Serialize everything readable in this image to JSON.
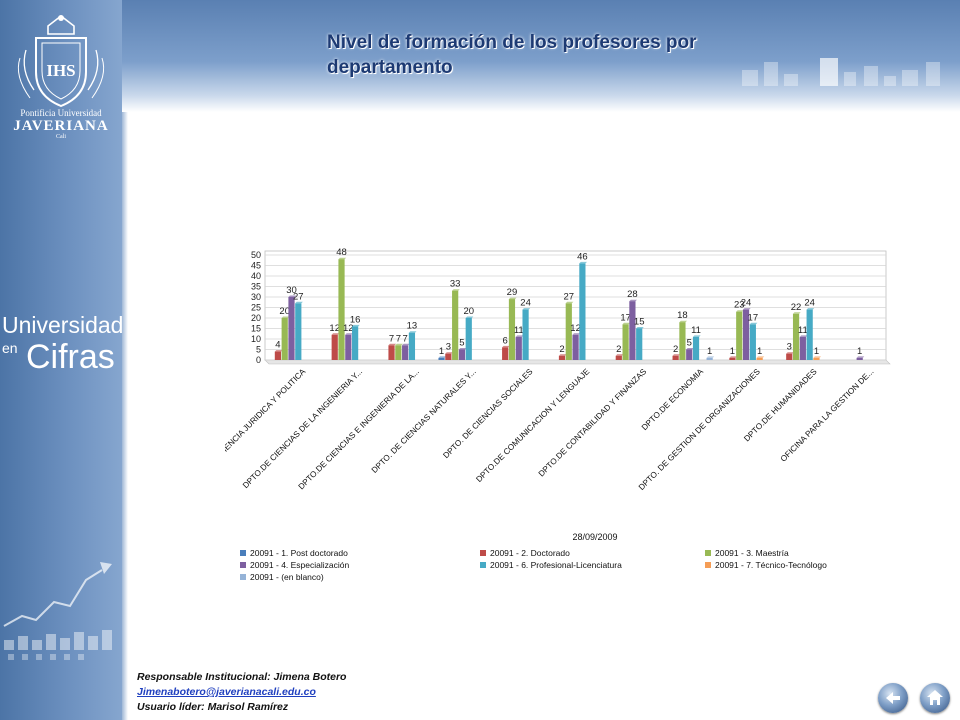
{
  "page": {
    "title": "Nivel de formación  de los profesores por departamento"
  },
  "branding": {
    "logo_text": "Pontificia Universidad JAVERIANA Cali",
    "university_line1": "Pontificia Universidad",
    "university_line2": "JAVERIANA",
    "university_line3": "Cali",
    "crest_letters": "IHS",
    "publication_line1": "Universidad",
    "publication_line2": "en",
    "publication_line3": "Cifras"
  },
  "footer": {
    "responsible": "Responsable Institucional: Jimena Botero",
    "email": "Jimenabotero@javerianacali.edu.co",
    "leader": "Usuario líder: Marisol Ramírez"
  },
  "nav": {
    "back_icon": "back-arrow-icon",
    "home_icon": "home-icon"
  },
  "colors": {
    "title": "#1d3a73",
    "sidebar": "#5b80b2"
  },
  "chart_data": {
    "type": "bar",
    "date_label": "28/09/2009",
    "ylim": [
      0,
      50
    ],
    "yticks": [
      0,
      5,
      10,
      15,
      20,
      25,
      30,
      35,
      40,
      45,
      50
    ],
    "grid": true,
    "legend_position": "bottom",
    "categories": [
      "DPTO.DE CIENCIA JURIDICA Y POLITICA",
      "DPTO.DE CIENCIAS DE LA INGENIERIA Y...",
      "DPTO.DE CIENCIAS E INGENIERIA DE LA...",
      "DPTO. DE CIENCIAS NATURALES Y...",
      "DPTO. DE CIENCIAS SOCIALES",
      "DPTO.DE COMUNICACION Y LENGUAJE",
      "DPTO.DE CONTABILIDAD Y FINANZAS",
      "DPTO.DE ECONOMIA",
      "DPTO. DE GESTION DE ORGANIZACIONES",
      "DPTO.DE HUMANIDADES",
      "OFICINA PARA LA GESTION DE..."
    ],
    "series": [
      {
        "name": "20091 - 1. Post doctorado",
        "color": "#4a7ebb",
        "values": [
          null,
          null,
          null,
          1,
          null,
          null,
          null,
          null,
          null,
          null,
          null
        ]
      },
      {
        "name": "20091 - 2. Doctorado",
        "color": "#be4b48",
        "values": [
          4,
          12,
          7,
          3,
          6,
          2,
          2,
          2,
          1,
          3,
          null
        ]
      },
      {
        "name": "20091 - 3. Maestría",
        "color": "#98b954",
        "values": [
          20,
          48,
          7,
          33,
          29,
          27,
          17,
          18,
          23,
          22,
          null
        ]
      },
      {
        "name": "20091 - 4. Especialización",
        "color": "#7d5fa0",
        "values": [
          30,
          12,
          7,
          5,
          11,
          12,
          28,
          5,
          24,
          11,
          1
        ]
      },
      {
        "name": "20091 - 6. Profesional-Licenciatura",
        "color": "#46aac5",
        "values": [
          27,
          16,
          13,
          20,
          24,
          46,
          15,
          11,
          17,
          24,
          null
        ]
      },
      {
        "name": "20091 - 7. Técnico-Tecnólogo",
        "color": "#f59d56",
        "values": [
          null,
          null,
          null,
          null,
          null,
          null,
          null,
          null,
          1,
          1,
          null
        ]
      },
      {
        "name": "20091 - (en blanco)",
        "color": "#95b3d7",
        "values": [
          null,
          null,
          null,
          null,
          null,
          null,
          null,
          1,
          null,
          null,
          null
        ]
      }
    ]
  }
}
